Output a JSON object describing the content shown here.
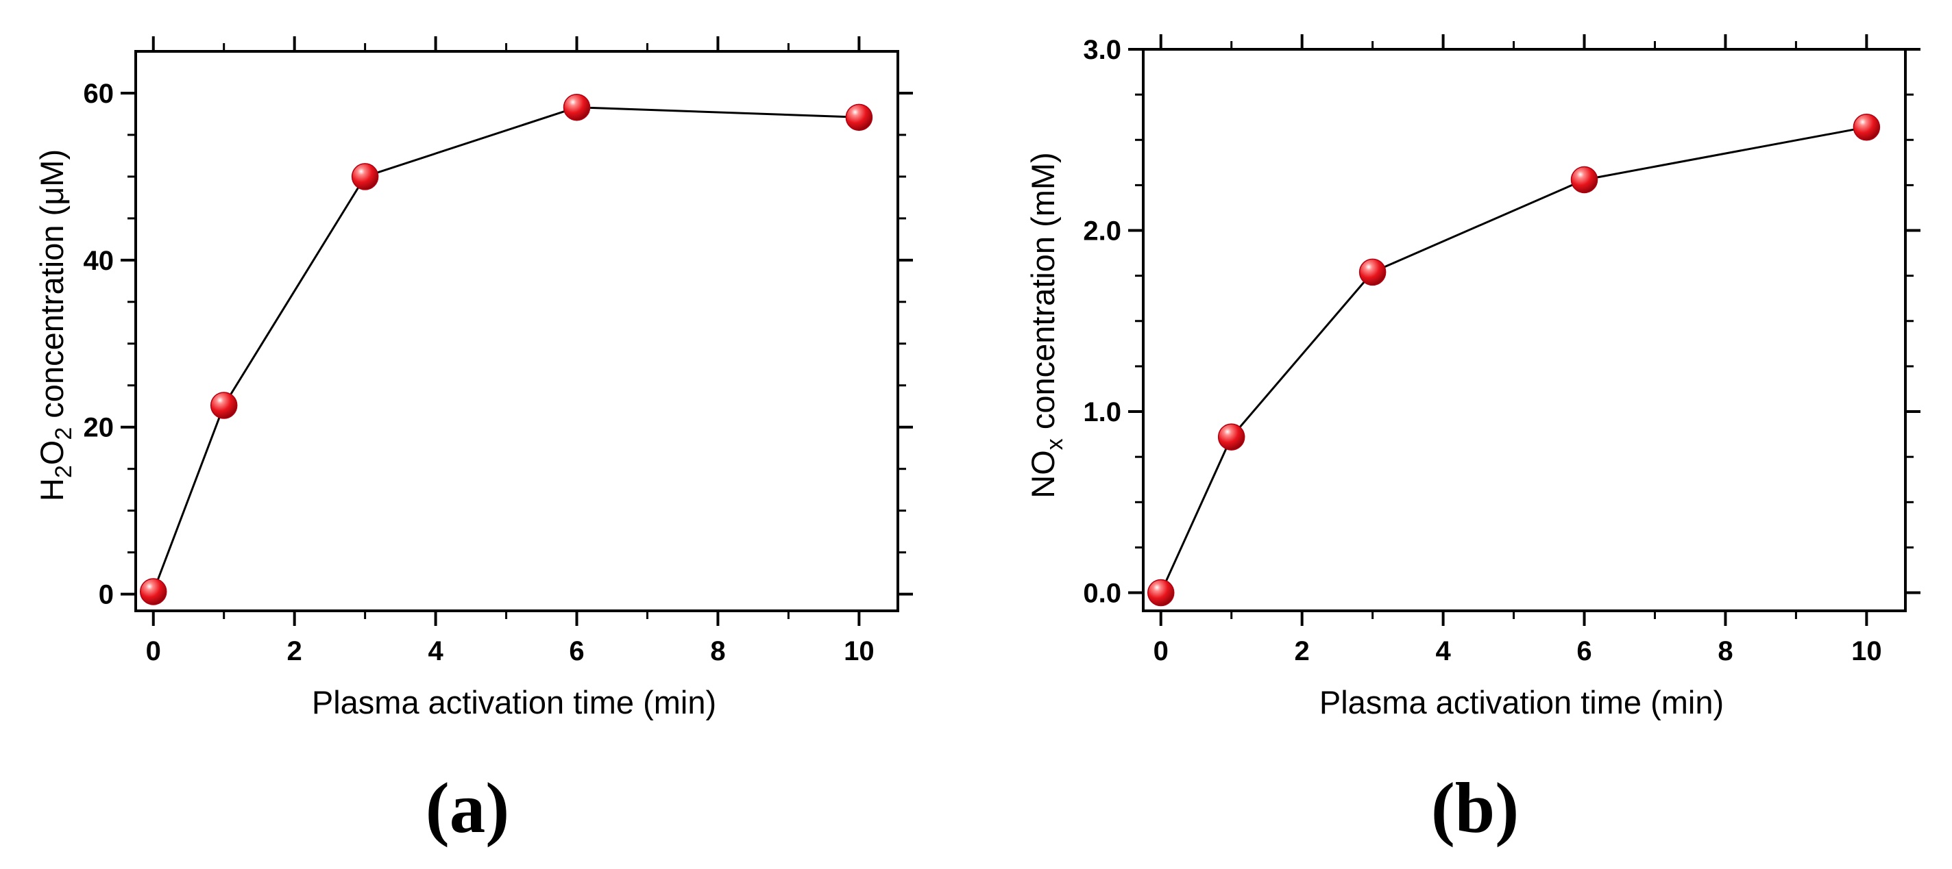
{
  "chart_data": [
    {
      "panel": "(a)",
      "type": "line",
      "xlabel": "Plasma activation time (min)",
      "ylabel": {
        "main": "H",
        "sub1": "2",
        "mid": "O",
        "sub2": "2",
        "rest": " concentration (",
        "greek": "μ",
        "unit": "M)"
      },
      "xlim": [
        -0.25,
        10.55
      ],
      "ylim": [
        -2,
        65
      ],
      "xticks": [
        0,
        2,
        4,
        6,
        8,
        10
      ],
      "yticks": [
        0,
        20,
        40,
        60
      ],
      "xtick_labels": [
        "0",
        "2",
        "4",
        "6",
        "8",
        "10"
      ],
      "ytick_labels": [
        "0",
        "20",
        "40",
        "60"
      ],
      "series": [
        {
          "name": "H2O2",
          "x": [
            0,
            1,
            3,
            6,
            10
          ],
          "values": [
            0.3,
            22.6,
            50.0,
            58.3,
            57.1
          ]
        }
      ]
    },
    {
      "panel": "(b)",
      "type": "line",
      "xlabel": "Plasma activation time (min)",
      "ylabel": {
        "main": "NO",
        "sub1": "x",
        "rest": " concentration (mM)"
      },
      "xlim": [
        -0.25,
        10.55
      ],
      "ylim": [
        -0.1,
        3.0
      ],
      "xticks": [
        0,
        2,
        4,
        6,
        8,
        10
      ],
      "yticks": [
        0.0,
        1.0,
        2.0,
        3.0
      ],
      "xtick_labels": [
        "0",
        "2",
        "4",
        "6",
        "8",
        "10"
      ],
      "ytick_labels": [
        "0.0",
        "1.0",
        "2.0",
        "3.0"
      ],
      "series": [
        {
          "name": "NOx",
          "x": [
            0,
            1,
            3,
            6,
            10
          ],
          "values": [
            0.0,
            0.86,
            1.77,
            2.28,
            2.57
          ]
        }
      ]
    }
  ],
  "marker_color": "#e8141c",
  "line_color": "#000000"
}
